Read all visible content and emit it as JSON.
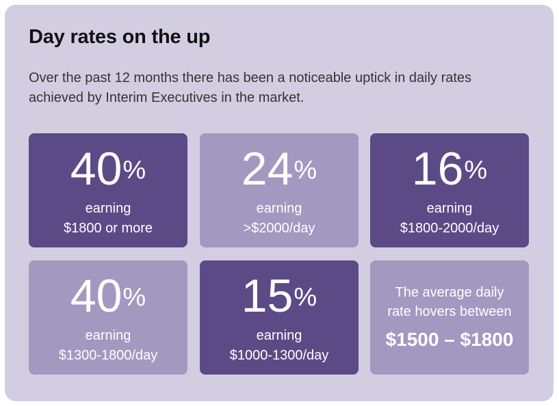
{
  "heading": "Day rates on the up",
  "intro": {
    "line1": "Over the past 12 months there has been a noticeable uptick in daily rates",
    "line2": "achieved by Interim Executives in the market."
  },
  "colors": {
    "panel_bg": "#d3cde2",
    "card_dark": "#5c4a86",
    "card_light": "#a398c0"
  },
  "stats": [
    {
      "value": "40",
      "sign": "%",
      "line1": "earning",
      "line2": "$1800 or more"
    },
    {
      "value": "24",
      "sign": "%",
      "line1": "earning",
      "line2": ">$2000/day"
    },
    {
      "value": "16",
      "sign": "%",
      "line1": "earning",
      "line2": "$1800-2000/day"
    },
    {
      "value": "40",
      "sign": "%",
      "line1": "earning",
      "line2": "$1300-1800/day"
    },
    {
      "value": "15",
      "sign": "%",
      "line1": "earning",
      "line2": "$1000-1300/day"
    }
  ],
  "average": {
    "line1": "The average daily",
    "line2": "rate hovers between",
    "range": "$1500 – $1800"
  }
}
